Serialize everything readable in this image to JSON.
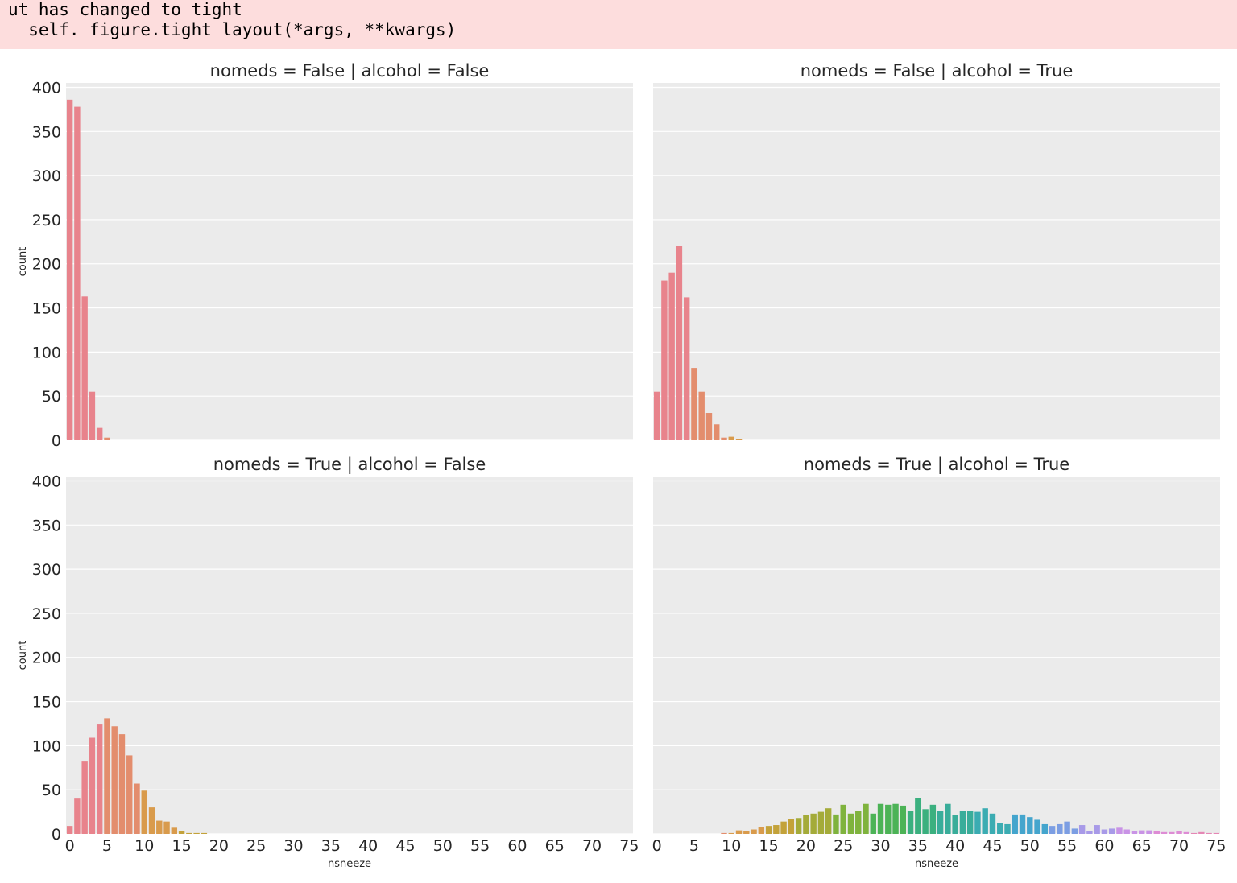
{
  "warning": {
    "line1": "ut has changed to tight",
    "line2": "  self._figure.tight_layout(*args, **kwargs)"
  },
  "chart_data": {
    "type": "bar",
    "layout": "2x2 facet grid (rows: nomeds, cols: alcohol)",
    "x_categories": [
      0,
      1,
      2,
      3,
      4,
      5,
      6,
      7,
      8,
      9,
      10,
      11,
      12,
      13,
      14,
      15,
      16,
      17,
      18,
      19,
      20,
      21,
      22,
      23,
      24,
      25,
      26,
      27,
      28,
      29,
      30,
      31,
      32,
      33,
      34,
      35,
      36,
      37,
      38,
      39,
      40,
      41,
      42,
      43,
      44,
      45,
      46,
      47,
      48,
      49,
      50,
      51,
      52,
      53,
      54,
      55,
      56,
      57,
      58,
      59,
      60,
      61,
      62,
      63,
      64,
      65,
      66,
      67,
      68,
      69,
      70,
      71,
      72,
      73,
      74,
      75
    ],
    "x_tick_labels": [
      "0",
      "5",
      "10",
      "15",
      "20",
      "25",
      "30",
      "35",
      "40",
      "45",
      "50",
      "55",
      "60",
      "65",
      "70",
      "75"
    ],
    "y_ticks": [
      "0",
      "50",
      "100",
      "150",
      "200",
      "250",
      "300",
      "350",
      "400"
    ],
    "ylim": [
      0,
      405
    ],
    "xlabel": "nsneeze",
    "ylabel": "count",
    "grid": true,
    "palette": [
      "#e8838c",
      "#e38d6d",
      "#d99b4c",
      "#c3a23a",
      "#a4ab39",
      "#7fb33d",
      "#4cb356",
      "#3bb07f",
      "#39ad9a",
      "#3bacb2",
      "#44a5cd",
      "#7c9ee3",
      "#a89ae8",
      "#c993e6",
      "#de8cd5",
      "#e587b5"
    ],
    "facets": [
      {
        "title": "nomeds = False | alcohol = False",
        "values": [
          386,
          378,
          163,
          55,
          14,
          3
        ]
      },
      {
        "title": "nomeds = False | alcohol = True",
        "values": [
          55,
          181,
          190,
          220,
          162,
          82,
          55,
          31,
          18,
          3,
          4,
          1
        ]
      },
      {
        "title": "nomeds = True | alcohol = False",
        "values": [
          9,
          40,
          82,
          109,
          124,
          131,
          122,
          113,
          89,
          57,
          49,
          30,
          15,
          14,
          7,
          3,
          1,
          1,
          1
        ]
      },
      {
        "title": "nomeds = True | alcohol = True",
        "values": [
          0,
          0,
          0,
          0,
          0,
          0,
          0,
          0,
          0,
          1,
          1,
          4,
          3,
          5,
          8,
          9,
          10,
          14,
          17,
          18,
          21,
          23,
          25,
          29,
          22,
          33,
          23,
          26,
          34,
          23,
          34,
          33,
          34,
          32,
          26,
          41,
          28,
          33,
          26,
          34,
          21,
          26,
          26,
          25,
          29,
          23,
          12,
          11,
          22,
          22,
          19,
          16,
          11,
          9,
          11,
          14,
          6,
          10,
          3,
          10,
          5,
          6,
          7,
          5,
          3,
          4,
          4,
          3,
          2,
          2,
          3,
          2,
          1,
          2,
          1,
          1
        ]
      }
    ]
  }
}
